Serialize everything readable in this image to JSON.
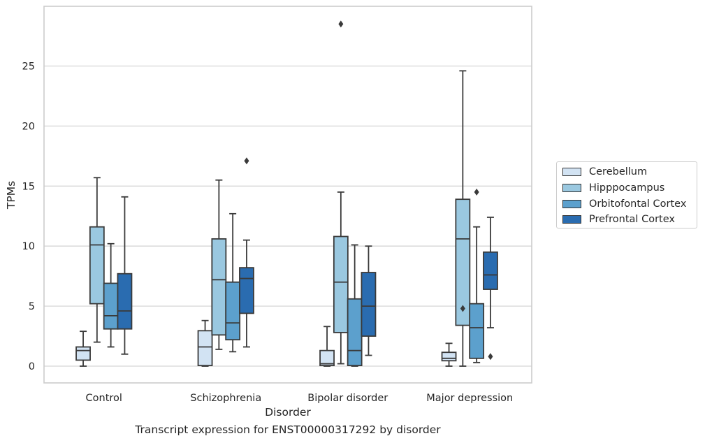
{
  "caption": "Transcript expression for ENST00000317292 by disorder",
  "chart_data": {
    "type": "boxplot",
    "xlabel": "Disorder",
    "ylabel": "TPMs",
    "ylim": [
      -1.4,
      29.8
    ],
    "yticks": [
      0,
      5,
      10,
      15,
      20,
      25
    ],
    "grid": "horizontal",
    "legend_position": "right",
    "categories": [
      "Control",
      "Schizophrenia",
      "Bipolar disorder",
      "Major depression"
    ],
    "series": [
      {
        "name": "Cerebellum",
        "color": "#d2e3f3",
        "boxes": [
          {
            "whislo": 0.0,
            "q1": 0.5,
            "med": 1.3,
            "q3": 1.6,
            "whishi": 2.9,
            "fliers": []
          },
          {
            "whislo": 0.0,
            "q1": 0.05,
            "med": 1.6,
            "q3": 2.95,
            "whishi": 3.8,
            "fliers": []
          },
          {
            "whislo": 0.0,
            "q1": 0.05,
            "med": 0.2,
            "q3": 1.3,
            "whishi": 3.3,
            "fliers": []
          },
          {
            "whislo": 0.0,
            "q1": 0.45,
            "med": 0.65,
            "q3": 1.15,
            "whishi": 1.9,
            "fliers": []
          }
        ]
      },
      {
        "name": "Hipppocampus",
        "color": "#9ac8e0",
        "boxes": [
          {
            "whislo": 2.0,
            "q1": 5.2,
            "med": 10.1,
            "q3": 11.6,
            "whishi": 15.7,
            "fliers": []
          },
          {
            "whislo": 1.4,
            "q1": 2.6,
            "med": 7.2,
            "q3": 10.6,
            "whishi": 15.5,
            "fliers": []
          },
          {
            "whislo": 0.2,
            "q1": 2.8,
            "med": 7.0,
            "q3": 10.8,
            "whishi": 14.5,
            "fliers": [
              28.5
            ]
          },
          {
            "whislo": 0.0,
            "q1": 3.4,
            "med": 10.6,
            "q3": 13.9,
            "whishi": 24.6,
            "fliers": [
              4.8
            ]
          }
        ]
      },
      {
        "name": "Orbitofontal Cortex",
        "color": "#5ca0cd",
        "boxes": [
          {
            "whislo": 1.6,
            "q1": 3.1,
            "med": 4.2,
            "q3": 6.9,
            "whishi": 10.2,
            "fliers": []
          },
          {
            "whislo": 1.2,
            "q1": 2.2,
            "med": 3.6,
            "q3": 7.0,
            "whishi": 12.7,
            "fliers": []
          },
          {
            "whislo": 0.0,
            "q1": 0.05,
            "med": 1.3,
            "q3": 5.6,
            "whishi": 10.1,
            "fliers": []
          },
          {
            "whislo": 0.3,
            "q1": 0.65,
            "med": 3.2,
            "q3": 5.2,
            "whishi": 11.6,
            "fliers": [
              14.5
            ]
          }
        ]
      },
      {
        "name": "Prefrontal Cortex",
        "color": "#2a6cb0",
        "boxes": [
          {
            "whislo": 1.0,
            "q1": 3.1,
            "med": 4.6,
            "q3": 7.7,
            "whishi": 14.1,
            "fliers": []
          },
          {
            "whislo": 1.6,
            "q1": 4.4,
            "med": 7.3,
            "q3": 8.2,
            "whishi": 10.5,
            "fliers": [
              17.1
            ]
          },
          {
            "whislo": 0.9,
            "q1": 2.5,
            "med": 5.0,
            "q3": 7.8,
            "whishi": 10.0,
            "fliers": []
          },
          {
            "whislo": 3.2,
            "q1": 6.4,
            "med": 7.6,
            "q3": 9.5,
            "whishi": 12.4,
            "fliers": [
              0.8
            ]
          }
        ]
      }
    ]
  }
}
